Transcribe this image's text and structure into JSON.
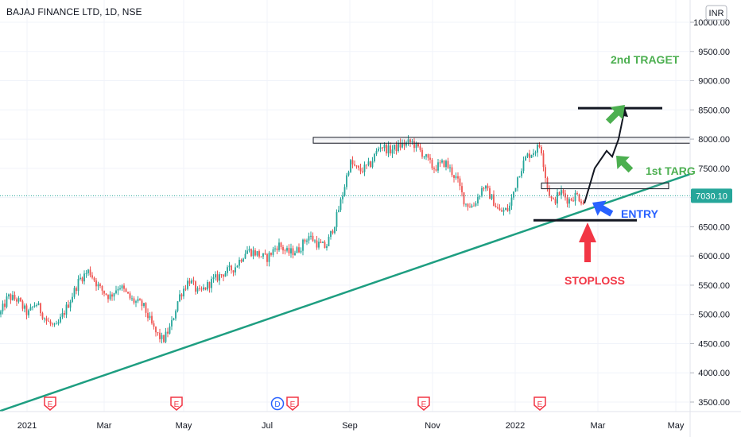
{
  "chart_data": {
    "type": "candlestick",
    "title": "BAJAJ FINANCE LTD, 1D, NSE",
    "currency": "INR",
    "ylim": [
      3400,
      10100
    ],
    "y_ticks": [
      "10000.00",
      "9500.00",
      "9000.00",
      "8500.00",
      "8000.00",
      "7500.00",
      "7000.00",
      "6500.00",
      "6000.00",
      "5500.00",
      "5000.00",
      "4500.00",
      "4000.00",
      "3500.00"
    ],
    "x_ticks": [
      "2021",
      "Mar",
      "May",
      "Jul",
      "Sep",
      "Nov",
      "2022",
      "Mar",
      "May"
    ],
    "last_price": "7030.10",
    "last_price_value": 7030.1,
    "colors": {
      "up": "#26a69a",
      "down": "#ef5350",
      "trend": "#1e9e81",
      "green": "#4caf50",
      "red": "#f23645",
      "blue": "#2962ff"
    },
    "price_path": [
      [
        0,
        5000
      ],
      [
        10,
        5300
      ],
      [
        22,
        5250
      ],
      [
        35,
        5000
      ],
      [
        45,
        5200
      ],
      [
        58,
        4900
      ],
      [
        70,
        4750
      ],
      [
        85,
        5150
      ],
      [
        100,
        5600
      ],
      [
        112,
        5750
      ],
      [
        125,
        5450
      ],
      [
        138,
        5300
      ],
      [
        150,
        5500
      ],
      [
        165,
        5250
      ],
      [
        180,
        5150
      ],
      [
        195,
        4700
      ],
      [
        205,
        4550
      ],
      [
        215,
        4800
      ],
      [
        225,
        5300
      ],
      [
        238,
        5600
      ],
      [
        250,
        5350
      ],
      [
        265,
        5550
      ],
      [
        280,
        5700
      ],
      [
        295,
        5800
      ],
      [
        310,
        6100
      ],
      [
        322,
        6050
      ],
      [
        335,
        5950
      ],
      [
        350,
        6200
      ],
      [
        362,
        6050
      ],
      [
        375,
        6100
      ],
      [
        388,
        6350
      ],
      [
        400,
        6200
      ],
      [
        410,
        6150
      ],
      [
        422,
        6600
      ],
      [
        430,
        7000
      ],
      [
        440,
        7600
      ],
      [
        452,
        7450
      ],
      [
        465,
        7550
      ],
      [
        478,
        7900
      ],
      [
        490,
        7800
      ],
      [
        505,
        7900
      ],
      [
        518,
        7950
      ],
      [
        532,
        7750
      ],
      [
        545,
        7500
      ],
      [
        560,
        7600
      ],
      [
        575,
        7300
      ],
      [
        585,
        6900
      ],
      [
        595,
        6850
      ],
      [
        608,
        7200
      ],
      [
        618,
        7000
      ],
      [
        628,
        6750
      ],
      [
        640,
        6800
      ],
      [
        652,
        7400
      ],
      [
        662,
        7700
      ],
      [
        672,
        7800
      ],
      [
        680,
        7900
      ],
      [
        688,
        7200
      ],
      [
        695,
        6900
      ],
      [
        705,
        7100
      ],
      [
        715,
        6950
      ],
      [
        725,
        7050
      ],
      [
        735,
        6900
      ]
    ],
    "trendline": {
      "start": [
        "2020-12",
        3300
      ],
      "end": [
        "2022-05",
        7400
      ]
    },
    "annotations": {
      "target2_label": "2nd TRAGET",
      "target1_label": "1st TARG",
      "entry_label": "ENTRY",
      "stoploss_label": "STOPLOSS",
      "resistance_zone": [
        7930,
        8030
      ],
      "target1_zone": [
        7150,
        7250
      ],
      "target2_level": 8530,
      "stoploss_level": 6610,
      "entry_price": 6790,
      "projection_path": [
        [
          735,
          6900
        ],
        [
          748,
          7500
        ],
        [
          763,
          7800
        ],
        [
          770,
          7700
        ],
        [
          778,
          8000
        ],
        [
          786,
          8530
        ]
      ]
    },
    "events": [
      {
        "label": "E"
      },
      {
        "label": "E"
      },
      {
        "label": "D"
      },
      {
        "label": "E"
      },
      {
        "label": "E"
      },
      {
        "label": "E"
      }
    ],
    "grid": true,
    "legend": "none"
  }
}
